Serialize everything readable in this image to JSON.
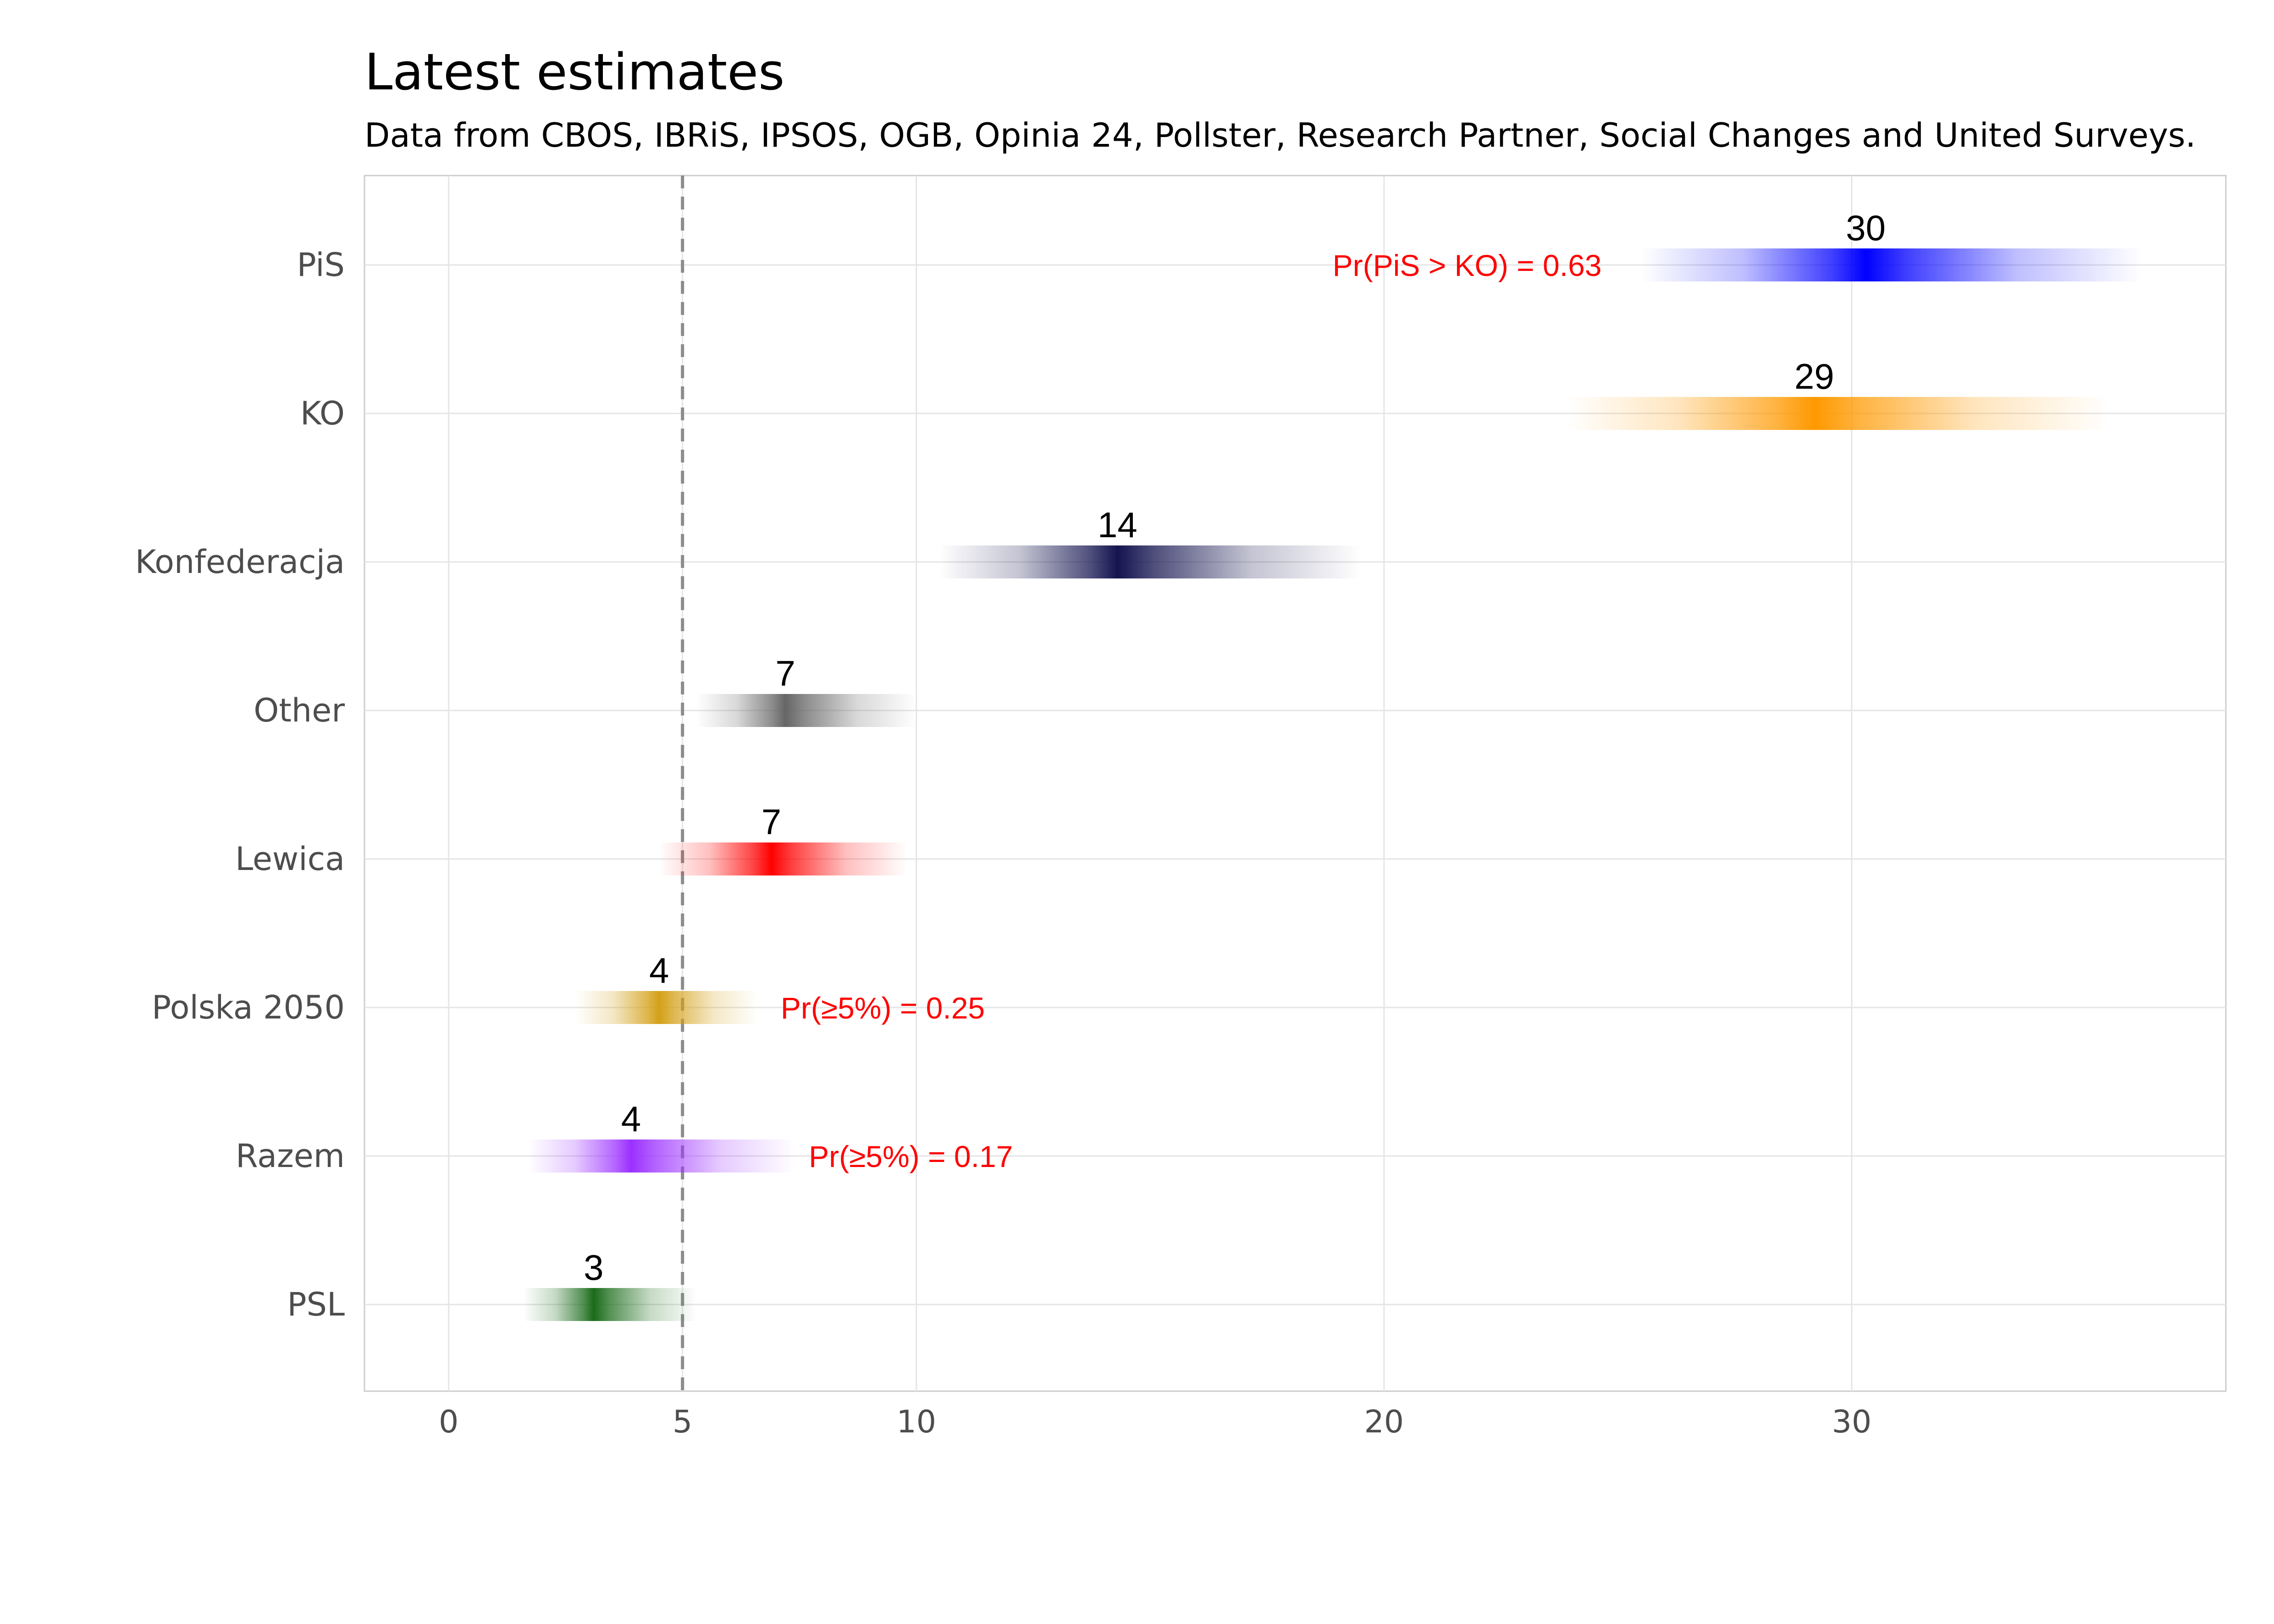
{
  "chart_data": {
    "type": "bar",
    "title": "Latest estimates",
    "subtitle": "Data from CBOS, IBRiS, IPSOS, OGB, Opinia 24, Pollster, Research Partner, Social Changes and United Surveys.",
    "xlabel": "",
    "ylabel": "",
    "xlim": [
      -1.8,
      38.0
    ],
    "xticks": [
      0,
      5,
      10,
      20,
      30
    ],
    "xtick_labels": [
      "0",
      "5",
      "10",
      "20",
      "30"
    ],
    "threshold": 5,
    "threshold_style": "dashed",
    "grid": true,
    "categories": [
      "PiS",
      "KO",
      "Konfederacja",
      "Other",
      "Lewica",
      "Polska 2050",
      "Razem",
      "PSL"
    ],
    "series": [
      {
        "party": "PiS",
        "value": 30.3,
        "label": "30",
        "low": 25.5,
        "high": 36.2,
        "color": "#0000FF"
      },
      {
        "party": "KO",
        "value": 29.2,
        "label": "29",
        "low": 23.9,
        "high": 35.5,
        "color": "#FF9900"
      },
      {
        "party": "Konfederacja",
        "value": 14.3,
        "label": "14",
        "low": 10.5,
        "high": 19.5,
        "color": "#141450"
      },
      {
        "party": "Other",
        "value": 7.2,
        "label": "7",
        "low": 5.3,
        "high": 10.0,
        "color": "#666666"
      },
      {
        "party": "Lewica",
        "value": 6.9,
        "label": "7",
        "low": 4.5,
        "high": 9.8,
        "color": "#FF0000"
      },
      {
        "party": "Polska 2050",
        "value": 4.5,
        "label": "4",
        "low": 2.7,
        "high": 6.6,
        "color": "#D4A017"
      },
      {
        "party": "Razem",
        "value": 3.9,
        "label": "4",
        "low": 1.7,
        "high": 7.4,
        "color": "#9B30FF"
      },
      {
        "party": "PSL",
        "value": 3.1,
        "label": "3",
        "low": 1.6,
        "high": 5.3,
        "color": "#1A6B1A"
      }
    ],
    "annotations": [
      {
        "party": "PiS",
        "text": "Pr(PiS > KO) =  0.63",
        "x": 18.9,
        "anchor": "start",
        "color": "#FF0000"
      },
      {
        "party": "Polska 2050",
        "text": "Pr(≥5%) =  0.25",
        "x": 7.1,
        "anchor": "start",
        "color": "#FF0000"
      },
      {
        "party": "Razem",
        "text": "Pr(≥5%) =  0.17",
        "x": 7.7,
        "anchor": "start",
        "color": "#FF0000"
      }
    ]
  }
}
